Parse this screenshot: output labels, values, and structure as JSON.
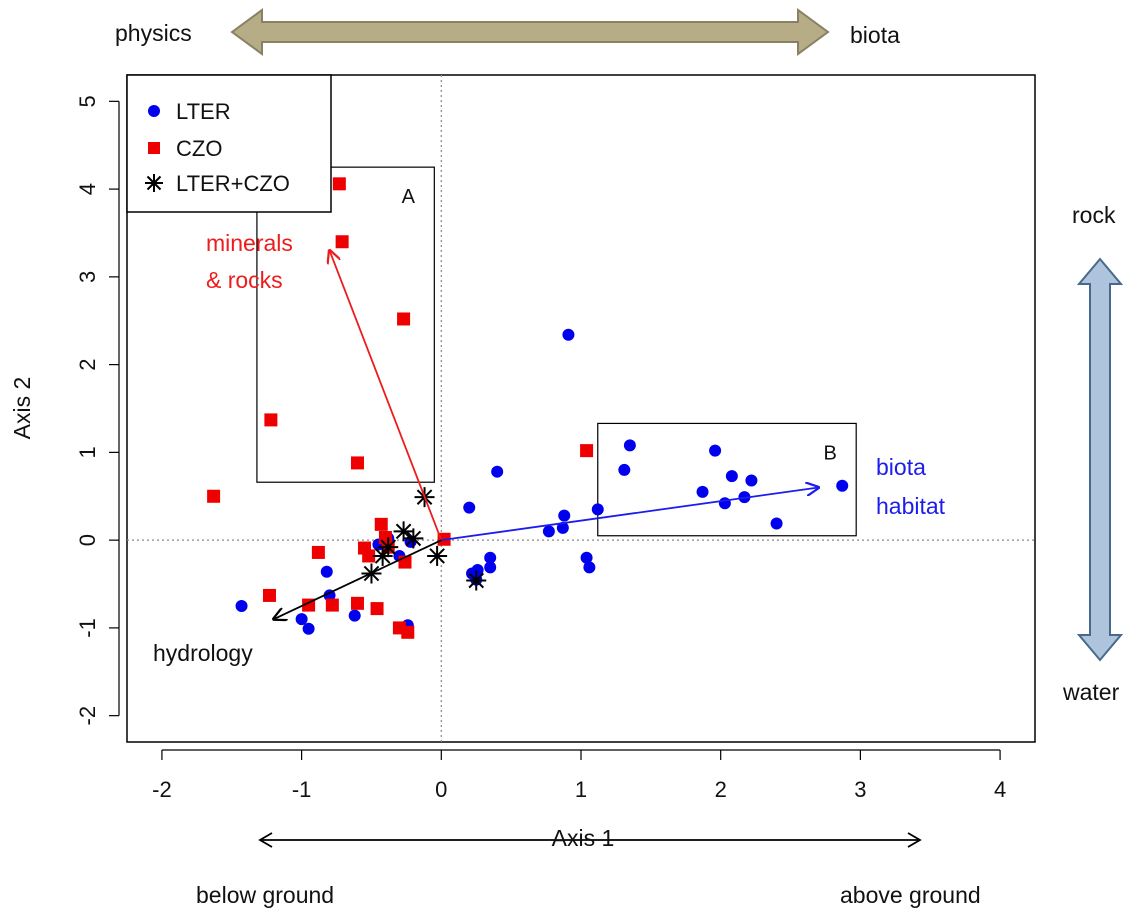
{
  "chart_data": {
    "type": "scatter",
    "xlabel": "Axis 1",
    "ylabel": "Axis 2",
    "xlim": [
      -2.25,
      4.25
    ],
    "ylim": [
      -2.3,
      5.3
    ],
    "xticks": [
      -2,
      -1,
      0,
      1,
      2,
      3,
      4
    ],
    "yticks": [
      -2,
      -1,
      0,
      1,
      2,
      3,
      4,
      5
    ],
    "reference_lines": {
      "x": 0,
      "y": 0,
      "style": "dotted"
    },
    "legend": {
      "placement": "top-left",
      "entries": [
        {
          "label": "LTER",
          "marker": "circle",
          "color": "#0000ee"
        },
        {
          "label": "CZO",
          "marker": "square",
          "color": "#ee0000"
        },
        {
          "label": "LTER+CZO",
          "marker": "asterisk",
          "color": "#000000"
        }
      ]
    },
    "series": [
      {
        "name": "LTER",
        "marker": "circle",
        "color": "#0000ee",
        "points": [
          [
            -1.43,
            -0.75
          ],
          [
            -1.0,
            -0.9
          ],
          [
            -0.95,
            -1.01
          ],
          [
            -0.82,
            -0.36
          ],
          [
            -0.8,
            -0.63
          ],
          [
            -0.62,
            -0.86
          ],
          [
            -0.45,
            -0.05
          ],
          [
            -0.38,
            0.02
          ],
          [
            -0.3,
            -0.18
          ],
          [
            -0.24,
            -0.97
          ],
          [
            -0.22,
            -0.02
          ],
          [
            0.2,
            0.37
          ],
          [
            0.22,
            -0.38
          ],
          [
            0.26,
            -0.34
          ],
          [
            0.25,
            -0.45
          ],
          [
            0.35,
            -0.2
          ],
          [
            0.35,
            -0.31
          ],
          [
            0.4,
            0.78
          ],
          [
            0.77,
            0.1
          ],
          [
            0.87,
            0.14
          ],
          [
            0.88,
            0.28
          ],
          [
            0.91,
            2.34
          ],
          [
            1.04,
            -0.2
          ],
          [
            1.06,
            -0.31
          ],
          [
            1.12,
            0.35
          ],
          [
            1.31,
            0.8
          ],
          [
            1.35,
            1.08
          ],
          [
            1.87,
            0.55
          ],
          [
            1.96,
            1.02
          ],
          [
            2.03,
            0.42
          ],
          [
            2.08,
            0.73
          ],
          [
            2.17,
            0.49
          ],
          [
            2.22,
            0.68
          ],
          [
            2.4,
            0.19
          ],
          [
            2.87,
            0.62
          ]
        ]
      },
      {
        "name": "CZO",
        "marker": "square",
        "color": "#ee0000",
        "points": [
          [
            -1.63,
            0.5
          ],
          [
            -1.22,
            1.37
          ],
          [
            -1.23,
            -0.63
          ],
          [
            -0.95,
            -0.74
          ],
          [
            -0.88,
            -0.14
          ],
          [
            -0.78,
            -0.74
          ],
          [
            -0.73,
            4.06
          ],
          [
            -0.71,
            3.4
          ],
          [
            -0.6,
            0.88
          ],
          [
            -0.6,
            -0.72
          ],
          [
            -0.55,
            -0.09
          ],
          [
            -0.52,
            -0.18
          ],
          [
            -0.46,
            -0.78
          ],
          [
            -0.43,
            0.18
          ],
          [
            -0.4,
            0.03
          ],
          [
            -0.38,
            -0.08
          ],
          [
            -0.3,
            -1.0
          ],
          [
            -0.27,
            2.52
          ],
          [
            -0.26,
            -0.25
          ],
          [
            -0.24,
            -1.05
          ],
          [
            0.02,
            0.01
          ],
          [
            1.04,
            1.02
          ]
        ]
      },
      {
        "name": "LTER+CZO",
        "marker": "asterisk",
        "color": "#000000",
        "points": [
          [
            -0.5,
            -0.38
          ],
          [
            -0.42,
            -0.18
          ],
          [
            -0.38,
            -0.08
          ],
          [
            -0.27,
            0.1
          ],
          [
            -0.2,
            0.02
          ],
          [
            -0.12,
            0.49
          ],
          [
            -0.03,
            -0.18
          ],
          [
            0.25,
            -0.46
          ]
        ]
      }
    ],
    "vectors": [
      {
        "label": "minerals & rocks",
        "color": "#ee1c1c",
        "from": [
          0,
          0
        ],
        "to": [
          -0.8,
          3.3
        ]
      },
      {
        "label": "biota habitat",
        "color": "#1c1cee",
        "from": [
          0,
          0
        ],
        "to": [
          2.7,
          0.6
        ]
      },
      {
        "label": "hydrology",
        "color": "#000000",
        "from": [
          0,
          0
        ],
        "to": [
          -1.2,
          -0.9
        ]
      }
    ],
    "boxes": [
      {
        "label": "A",
        "x": [
          -1.32,
          -0.05
        ],
        "y": [
          0.66,
          4.25
        ]
      },
      {
        "label": "B",
        "x": [
          1.12,
          2.97
        ],
        "y": [
          0.05,
          1.33
        ]
      }
    ],
    "annotations": {
      "vector_labels": {
        "minerals": "minerals",
        "rocks": "& rocks",
        "biota": "biota",
        "habitat": "habitat",
        "hydrology": "hydrology"
      },
      "axis_arrows": {
        "top_left": "physics",
        "top_right": "biota",
        "right_top": "rock",
        "right_bottom": "water",
        "bottom_left": "below ground",
        "bottom_right": "above ground"
      },
      "colors": {
        "top_arrow_fill": "#b6ac86",
        "top_arrow_stroke": "#8a8063",
        "side_arrow_fill": "#aec3dc",
        "side_arrow_stroke": "#48698c"
      }
    }
  }
}
